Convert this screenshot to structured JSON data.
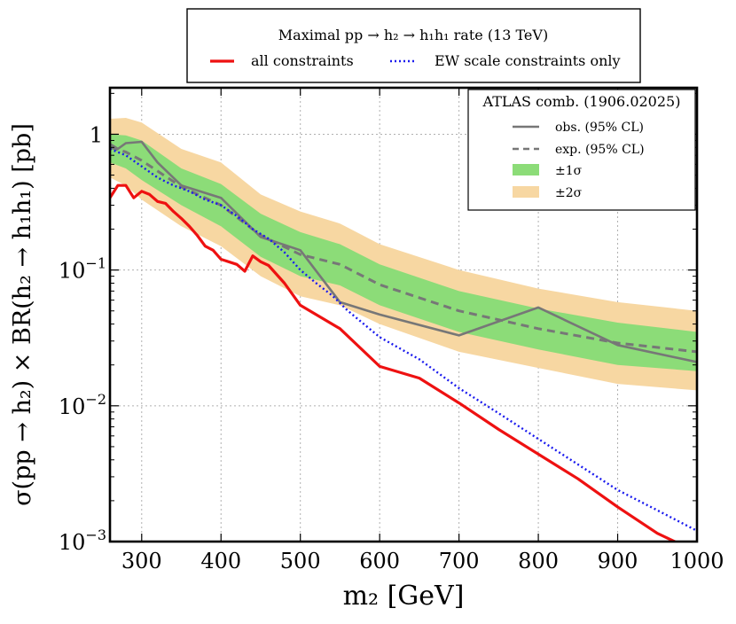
{
  "chart_data": {
    "type": "line",
    "title": "Maximal pp → h₂ → h₁h₁ rate (13 TeV)",
    "xlabel": "m₂ [GeV]",
    "ylabel": "σ(pp → h₂) × BR(h₂ → h₁h₁) [pb]",
    "xlim": [
      260,
      1000
    ],
    "ylim": [
      0.001,
      2.2
    ],
    "yscale": "log",
    "x_ticks": [
      300,
      400,
      500,
      600,
      700,
      800,
      900,
      1000
    ],
    "x_tick_labels": [
      "300",
      "400",
      "500",
      "600",
      "700",
      "800",
      "900",
      "1000"
    ],
    "y_ticks": [
      1,
      0.1,
      0.01,
      0.001
    ],
    "y_tick_labels": [
      {
        "base": "1",
        "exp": ""
      },
      {
        "base": "10",
        "exp": "−1"
      },
      {
        "base": "10",
        "exp": "−2"
      },
      {
        "base": "10",
        "exp": "−3"
      }
    ],
    "grid": true,
    "top_legend": {
      "header": "Maximal pp → h₂ → h₁h₁ rate (13 TeV)",
      "entries": [
        "all constraints",
        "EW scale constraints only"
      ]
    },
    "atlas_legend": {
      "title": "ATLAS comb. (1906.02025)",
      "entries": [
        "obs. (95% CL)",
        "exp. (95% CL)",
        "±1σ",
        "±2σ"
      ]
    },
    "colors": {
      "all_constraints": "#ee1111",
      "ew_only": "#1a1aee",
      "observed": "#777777",
      "expected": "#777777",
      "band1": "#8cdc78",
      "band2": "#f7d7a2"
    },
    "series": [
      {
        "name": "all constraints",
        "x": [
          260,
          270,
          280,
          290,
          300,
          310,
          320,
          330,
          340,
          350,
          360,
          370,
          380,
          390,
          400,
          420,
          430,
          440,
          450,
          460,
          480,
          500,
          550,
          600,
          650,
          700,
          750,
          800,
          850,
          900,
          950,
          980
        ],
        "y": [
          0.34,
          0.42,
          0.42,
          0.34,
          0.38,
          0.36,
          0.32,
          0.31,
          0.27,
          0.24,
          0.21,
          0.18,
          0.15,
          0.14,
          0.12,
          0.11,
          0.098,
          0.127,
          0.115,
          0.108,
          0.08,
          0.055,
          0.037,
          0.0195,
          0.016,
          0.0105,
          0.0067,
          0.0044,
          0.0029,
          0.0018,
          0.00115,
          0.00095
        ]
      },
      {
        "name": "EW scale constraints only",
        "x": [
          260,
          280,
          300,
          320,
          340,
          360,
          380,
          400,
          420,
          440,
          460,
          480,
          500,
          520,
          540,
          560,
          580,
          600,
          650,
          700,
          750,
          800,
          850,
          900,
          950,
          1000
        ],
        "y": [
          0.78,
          0.7,
          0.58,
          0.48,
          0.42,
          0.38,
          0.33,
          0.3,
          0.25,
          0.2,
          0.17,
          0.135,
          0.1,
          0.08,
          0.065,
          0.05,
          0.04,
          0.032,
          0.022,
          0.0135,
          0.0088,
          0.0057,
          0.0037,
          0.0024,
          0.0017,
          0.0012
        ]
      },
      {
        "name": "obs. (95% CL)",
        "x": [
          260,
          270,
          280,
          300,
          320,
          350,
          400,
          450,
          500,
          550,
          600,
          700,
          800,
          900,
          1000
        ],
        "y": [
          0.85,
          0.78,
          0.86,
          0.88,
          0.62,
          0.42,
          0.34,
          0.175,
          0.14,
          0.058,
          0.047,
          0.033,
          0.053,
          0.028,
          0.021
        ]
      },
      {
        "name": "exp. (95% CL)",
        "x": [
          260,
          280,
          300,
          350,
          400,
          450,
          500,
          550,
          600,
          700,
          800,
          900,
          1000
        ],
        "y": [
          0.8,
          0.74,
          0.64,
          0.41,
          0.3,
          0.18,
          0.13,
          0.11,
          0.078,
          0.05,
          0.037,
          0.029,
          0.025
        ]
      }
    ],
    "band_1sigma": {
      "x": [
        260,
        280,
        300,
        350,
        400,
        450,
        500,
        550,
        600,
        700,
        800,
        900,
        1000
      ],
      "low": [
        0.62,
        0.56,
        0.46,
        0.3,
        0.21,
        0.125,
        0.09,
        0.077,
        0.055,
        0.035,
        0.026,
        0.02,
        0.018
      ],
      "high": [
        1.0,
        0.98,
        0.9,
        0.56,
        0.43,
        0.26,
        0.19,
        0.155,
        0.11,
        0.07,
        0.052,
        0.041,
        0.035
      ]
    },
    "band_2sigma": {
      "x": [
        260,
        280,
        300,
        350,
        400,
        450,
        500,
        550,
        600,
        700,
        800,
        900,
        1000
      ],
      "low": [
        0.48,
        0.42,
        0.33,
        0.21,
        0.15,
        0.09,
        0.064,
        0.055,
        0.04,
        0.025,
        0.019,
        0.0145,
        0.013
      ],
      "high": [
        1.3,
        1.32,
        1.22,
        0.78,
        0.62,
        0.36,
        0.27,
        0.22,
        0.155,
        0.1,
        0.073,
        0.058,
        0.05
      ]
    }
  }
}
